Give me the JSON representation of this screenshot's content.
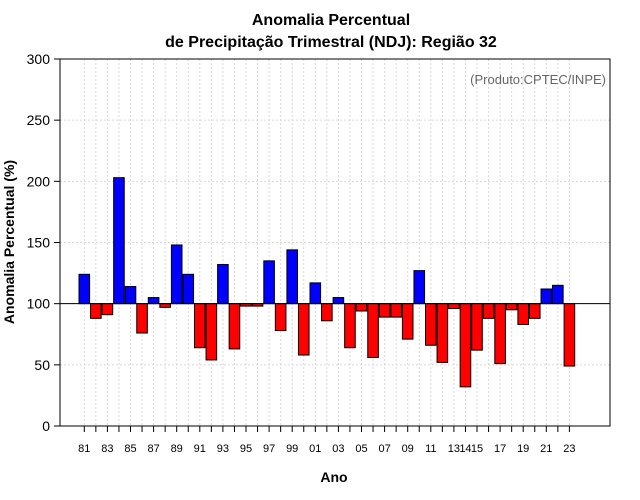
{
  "chart_data": {
    "type": "bar",
    "title_line1": "Anomalia Percentual",
    "title_line2": "de Precipitação Trimestral (NDJ): Região 32",
    "xlabel": "Ano",
    "ylabel": "Anomalia Percentual (%)",
    "credit": "(Produto:CPTEC/INPE)",
    "ylim": [
      0,
      300
    ],
    "yticks": [
      "0",
      "50",
      "100",
      "150",
      "200",
      "250",
      "300"
    ],
    "baseline": 100,
    "categories": [
      "81",
      "82",
      "83",
      "84",
      "85",
      "86",
      "87",
      "88",
      "89",
      "90",
      "91",
      "92",
      "93",
      "94",
      "95",
      "96",
      "97",
      "98",
      "99",
      "00",
      "01",
      "02",
      "03",
      "04",
      "05",
      "06",
      "07",
      "08",
      "09",
      "10",
      "11",
      "12",
      "13",
      "14",
      "15",
      "16",
      "17",
      "18",
      "19",
      "20",
      "21",
      "22",
      "23"
    ],
    "xtick_labels": [
      "81",
      "83",
      "85",
      "87",
      "89",
      "91",
      "93",
      "95",
      "97",
      "99",
      "01",
      "03",
      "05",
      "07",
      "09",
      "11",
      "13",
      "14",
      "15",
      "17",
      "19",
      "21",
      "23"
    ],
    "values": [
      124,
      88,
      91,
      203,
      114,
      76,
      105,
      97,
      148,
      124,
      64,
      54,
      132,
      63,
      98,
      98,
      135,
      78,
      144,
      58,
      117,
      86,
      105,
      64,
      94,
      56,
      89,
      89,
      71,
      127,
      66,
      52,
      96,
      32,
      62,
      88,
      51,
      95,
      83,
      88,
      112,
      115,
      49
    ],
    "colors": {
      "above": "#0000ff",
      "below": "#ff0000"
    }
  }
}
